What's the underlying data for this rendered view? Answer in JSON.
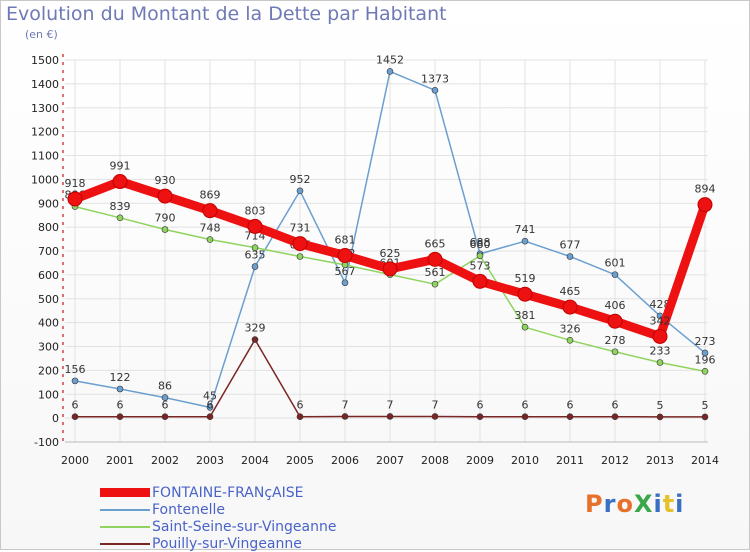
{
  "header": {
    "title": "Evolution du Montant de la Dette par Habitant",
    "subtitle": "(en €)"
  },
  "logo": {
    "text": "ProXiti",
    "colors": [
      "#e8702a",
      "#3a6fc4",
      "#e8702a",
      "#3aa84a",
      "#3a6fc4",
      "#e8c02a",
      "#3a6fc4"
    ]
  },
  "chart_data": {
    "type": "line",
    "x": [
      2000,
      2001,
      2002,
      2003,
      2004,
      2005,
      2006,
      2007,
      2008,
      2009,
      2010,
      2011,
      2012,
      2013,
      2014
    ],
    "ylim": [
      -100,
      1500
    ],
    "yticks": [
      -100,
      0,
      100,
      200,
      300,
      400,
      500,
      600,
      700,
      800,
      900,
      1000,
      1100,
      1200,
      1300,
      1400,
      1500
    ],
    "grid": true,
    "legend_position": "bottom-left",
    "series": [
      {
        "name": "FONTAINE-FRANçAISE",
        "color": "#ee1111",
        "emphasis": true,
        "values": [
          918,
          991,
          930,
          869,
          803,
          731,
          681,
          625,
          665,
          573,
          519,
          465,
          406,
          342,
          894
        ],
        "labels": [
          "918",
          "991",
          "930",
          "869",
          "803",
          "731",
          "681",
          "625",
          "665",
          "573",
          "519",
          "465",
          "406",
          "342",
          "894"
        ]
      },
      {
        "name": "Fontenelle",
        "color": "#6b9fd0",
        "values": [
          156,
          122,
          86,
          45,
          635,
          952,
          567,
          1452,
          1373,
          688,
          741,
          677,
          601,
          428,
          273
        ],
        "labels": [
          "156",
          "122",
          "86",
          "45",
          "635",
          "952",
          "567",
          "1452",
          "1373",
          "688",
          "741",
          "677",
          "601",
          "428",
          "273"
        ]
      },
      {
        "name": "Saint-Seine-sur-Vingeanne",
        "color": "#8fd45e",
        "values": [
          886,
          839,
          790,
          748,
          714,
          677,
          642,
          601,
          561,
          680,
          381,
          326,
          278,
          233,
          196
        ],
        "labels": [
          "886",
          "839",
          "790",
          "748",
          "714",
          "677",
          "642",
          "601",
          "561",
          "680",
          "381",
          "326",
          "278",
          "233",
          "196"
        ]
      },
      {
        "name": "Pouilly-sur-Vingeanne",
        "color": "#7a2626",
        "values": [
          6,
          6,
          6,
          6,
          329,
          6,
          7,
          7,
          7,
          6,
          6,
          6,
          6,
          5,
          5
        ],
        "labels": [
          "6",
          "6",
          "6",
          "6",
          "329",
          "6",
          "7",
          "7",
          "7",
          "6",
          "6",
          "6",
          "6",
          "5",
          "5"
        ]
      }
    ]
  }
}
